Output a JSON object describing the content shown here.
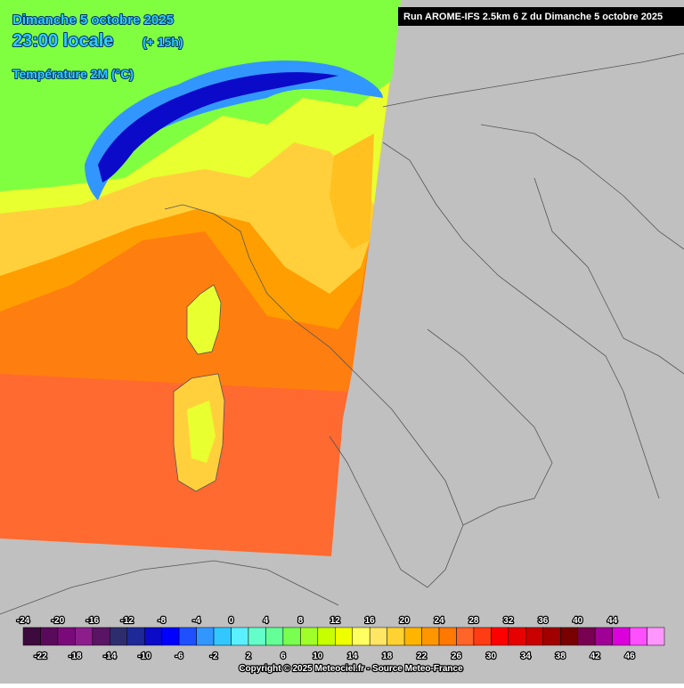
{
  "header": {
    "date": "Dimanche 5 octobre 2025",
    "time": "23:00 locale",
    "lead": "(+ 15h)",
    "parameter": "Température 2M (°C)",
    "run": "Run AROME-IFS 2.5km 6 Z du Dimanche 5 octobre 2025"
  },
  "legend": {
    "labels": [
      -24,
      -22,
      -20,
      -18,
      -16,
      -14,
      -12,
      -10,
      -8,
      -6,
      -4,
      -2,
      0,
      2,
      4,
      6,
      8,
      10,
      12,
      14,
      16,
      18,
      20,
      22,
      24,
      26,
      28,
      30,
      32,
      34,
      36,
      38,
      40,
      42,
      44,
      46
    ],
    "colors": [
      "#3c0a3c",
      "#5a0a5a",
      "#7a0a7a",
      "#8c1e8c",
      "#5a1464",
      "#2d2d6e",
      "#1e2896",
      "#0a0ac8",
      "#0000ff",
      "#1e50ff",
      "#3296ff",
      "#32c8ff",
      "#5af0ff",
      "#64ffc8",
      "#64ff96",
      "#78ff50",
      "#a0ff28",
      "#c8ff00",
      "#f0ff00",
      "#ffff64",
      "#ffe664",
      "#ffd232",
      "#ffb400",
      "#ff9600",
      "#ff7800",
      "#ff6428",
      "#ff3c14",
      "#ff0000",
      "#e60000",
      "#c80000",
      "#a00000",
      "#780000",
      "#780050",
      "#a00096",
      "#dc00dc",
      "#ff50ff",
      "#ff96ff"
    ]
  },
  "footer": {
    "copyright": "Copyright © 2025 Meteociel.fr - Source Meteo-France"
  }
}
